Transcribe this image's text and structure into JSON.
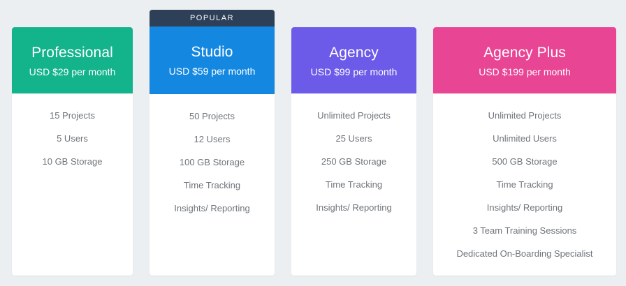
{
  "badge": "POPULAR",
  "plans": [
    {
      "name": "Professional",
      "price": "USD $29 per month",
      "color": "#13b38c",
      "features": [
        "15 Projects",
        "5 Users",
        "10 GB Storage"
      ]
    },
    {
      "name": "Studio",
      "price": "USD $59 per month",
      "color": "#1488e0",
      "features": [
        "50 Projects",
        "12 Users",
        "100 GB Storage",
        "Time Tracking",
        "Insights/ Reporting"
      ]
    },
    {
      "name": "Agency",
      "price": "USD $99 per month",
      "color": "#6c5ae8",
      "features": [
        "Unlimited Projects",
        "25 Users",
        "250 GB Storage",
        "Time Tracking",
        "Insights/ Reporting"
      ]
    },
    {
      "name": "Agency Plus",
      "price": "USD $199 per month",
      "color": "#e94595",
      "features": [
        "Unlimited Projects",
        "Unlimited Users",
        "500 GB Storage",
        "Time Tracking",
        "Insights/ Reporting",
        "3 Team Training Sessions",
        "Dedicated On-Boarding Specialist"
      ]
    }
  ]
}
